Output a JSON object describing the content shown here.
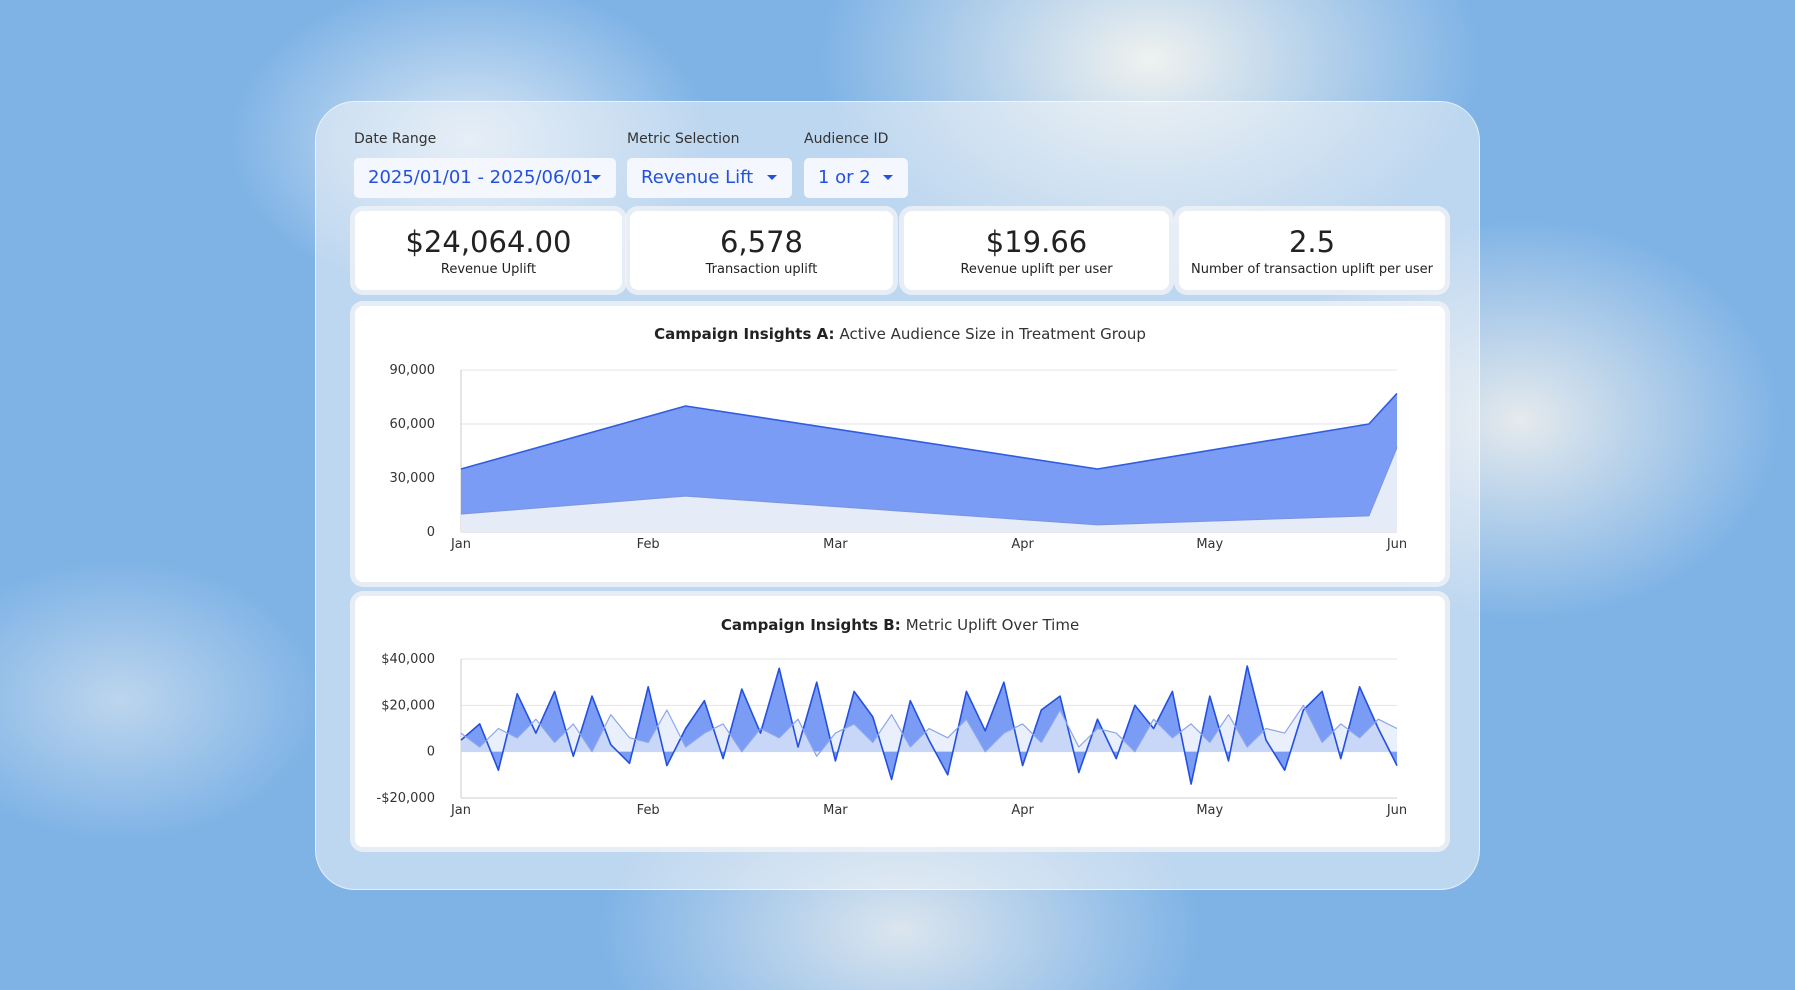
{
  "filters": [
    {
      "label": "Date Range",
      "value": "2025/01/01 - 2025/06/01"
    },
    {
      "label": "Metric Selection",
      "value": "Revenue Lift"
    },
    {
      "label": "Audience ID",
      "value": "1 or 2"
    }
  ],
  "kpis": [
    {
      "value": "$24,064.00",
      "label": "Revenue Uplift"
    },
    {
      "value": "6,578",
      "label": "Transaction uplift"
    },
    {
      "value": "$19.66",
      "label": "Revenue uplift per user"
    },
    {
      "value": "2.5",
      "label": "Number of transaction uplift per user"
    }
  ],
  "chart_data": [
    {
      "type": "area",
      "title": "Campaign Insights A:",
      "subtitle": "Active Audience Size in Treatment Group",
      "x": [
        0,
        1.2,
        3.4,
        4.85,
        5
      ],
      "xlim": [
        0,
        5
      ],
      "xticks": [
        {
          "value": 0,
          "label": "Jan"
        },
        {
          "value": 1,
          "label": "Feb"
        },
        {
          "value": 2,
          "label": "Mar"
        },
        {
          "value": 3,
          "label": "Apr"
        },
        {
          "value": 4,
          "label": "May"
        },
        {
          "value": 5,
          "label": "Jun"
        }
      ],
      "ylim": [
        0,
        90000
      ],
      "yticks": [
        0,
        {
          "value": 30000,
          "label": "30,000"
        },
        {
          "value": 60000,
          "label": "60,000"
        },
        {
          "value": 90000,
          "label": "90,000"
        }
      ],
      "grid": true,
      "series": [
        {
          "color": "#2f5ce0",
          "fill": "#7b9cf4",
          "values": [
            35000,
            70000,
            35000,
            60000,
            77000
          ]
        },
        {
          "color": "#7d95e0",
          "fill": "#e6ebf8",
          "values": [
            10000,
            20000,
            4000,
            9000,
            47000
          ]
        }
      ]
    },
    {
      "type": "area",
      "title": "Campaign Insights B:",
      "subtitle": "Metric Uplift Over Time",
      "x": [
        0,
        0.1,
        0.2,
        0.3,
        0.4,
        0.5,
        0.6,
        0.7,
        0.8,
        0.9,
        1,
        1.1,
        1.2,
        1.3,
        1.4,
        1.5,
        1.6,
        1.7,
        1.8,
        1.9,
        2,
        2.1,
        2.2,
        2.3,
        2.4,
        2.5,
        2.6,
        2.7,
        2.8,
        2.9,
        3,
        3.1,
        3.2,
        3.3,
        3.4,
        3.5,
        3.6,
        3.7,
        3.8,
        3.9,
        4,
        4.1,
        4.2,
        4.3,
        4.4,
        4.5,
        4.6,
        4.7,
        4.8,
        4.9,
        5
      ],
      "xlim": [
        0,
        5
      ],
      "xticks": [
        {
          "value": 0,
          "label": "Jan"
        },
        {
          "value": 1,
          "label": "Feb"
        },
        {
          "value": 2,
          "label": "Mar"
        },
        {
          "value": 3,
          "label": "Apr"
        },
        {
          "value": 4,
          "label": "May"
        },
        {
          "value": 5,
          "label": "Jun"
        }
      ],
      "ylim": [
        -20000,
        40000
      ],
      "yticks": [
        {
          "value": -20000,
          "label": "-$20,000"
        },
        0,
        {
          "value": 20000,
          "label": "$20,000"
        },
        {
          "value": 40000,
          "label": "$40,000"
        }
      ],
      "grid": true,
      "series": [
        {
          "color": "#2350e0",
          "fill": "#7b9cf4",
          "values": [
            5000,
            12000,
            -8000,
            25000,
            8000,
            26000,
            -2000,
            24000,
            3000,
            -5000,
            28000,
            -6000,
            10000,
            22000,
            -3000,
            27000,
            8000,
            36000,
            2000,
            30000,
            -4000,
            26000,
            15000,
            -12000,
            22000,
            5000,
            -10000,
            26000,
            9000,
            30000,
            -6000,
            18000,
            24000,
            -9000,
            14000,
            -3000,
            20000,
            10000,
            26000,
            -14000,
            24000,
            -4000,
            37000,
            5000,
            -8000,
            18000,
            26000,
            -3000,
            28000,
            10000,
            -6000
          ]
        },
        {
          "color": "#8aa5ec",
          "fill": "rgba(226,233,250,0.75)",
          "values": [
            8000,
            2000,
            10000,
            6000,
            14000,
            4000,
            12000,
            0,
            16000,
            6000,
            4000,
            18000,
            2000,
            8000,
            12000,
            0,
            10000,
            6000,
            14000,
            -2000,
            8000,
            12000,
            4000,
            16000,
            2000,
            10000,
            6000,
            14000,
            0,
            8000,
            12000,
            4000,
            18000,
            2000,
            10000,
            8000,
            0,
            14000,
            6000,
            12000,
            4000,
            16000,
            2000,
            10000,
            8000,
            20000,
            4000,
            12000,
            6000,
            14000,
            10000
          ]
        }
      ]
    }
  ]
}
